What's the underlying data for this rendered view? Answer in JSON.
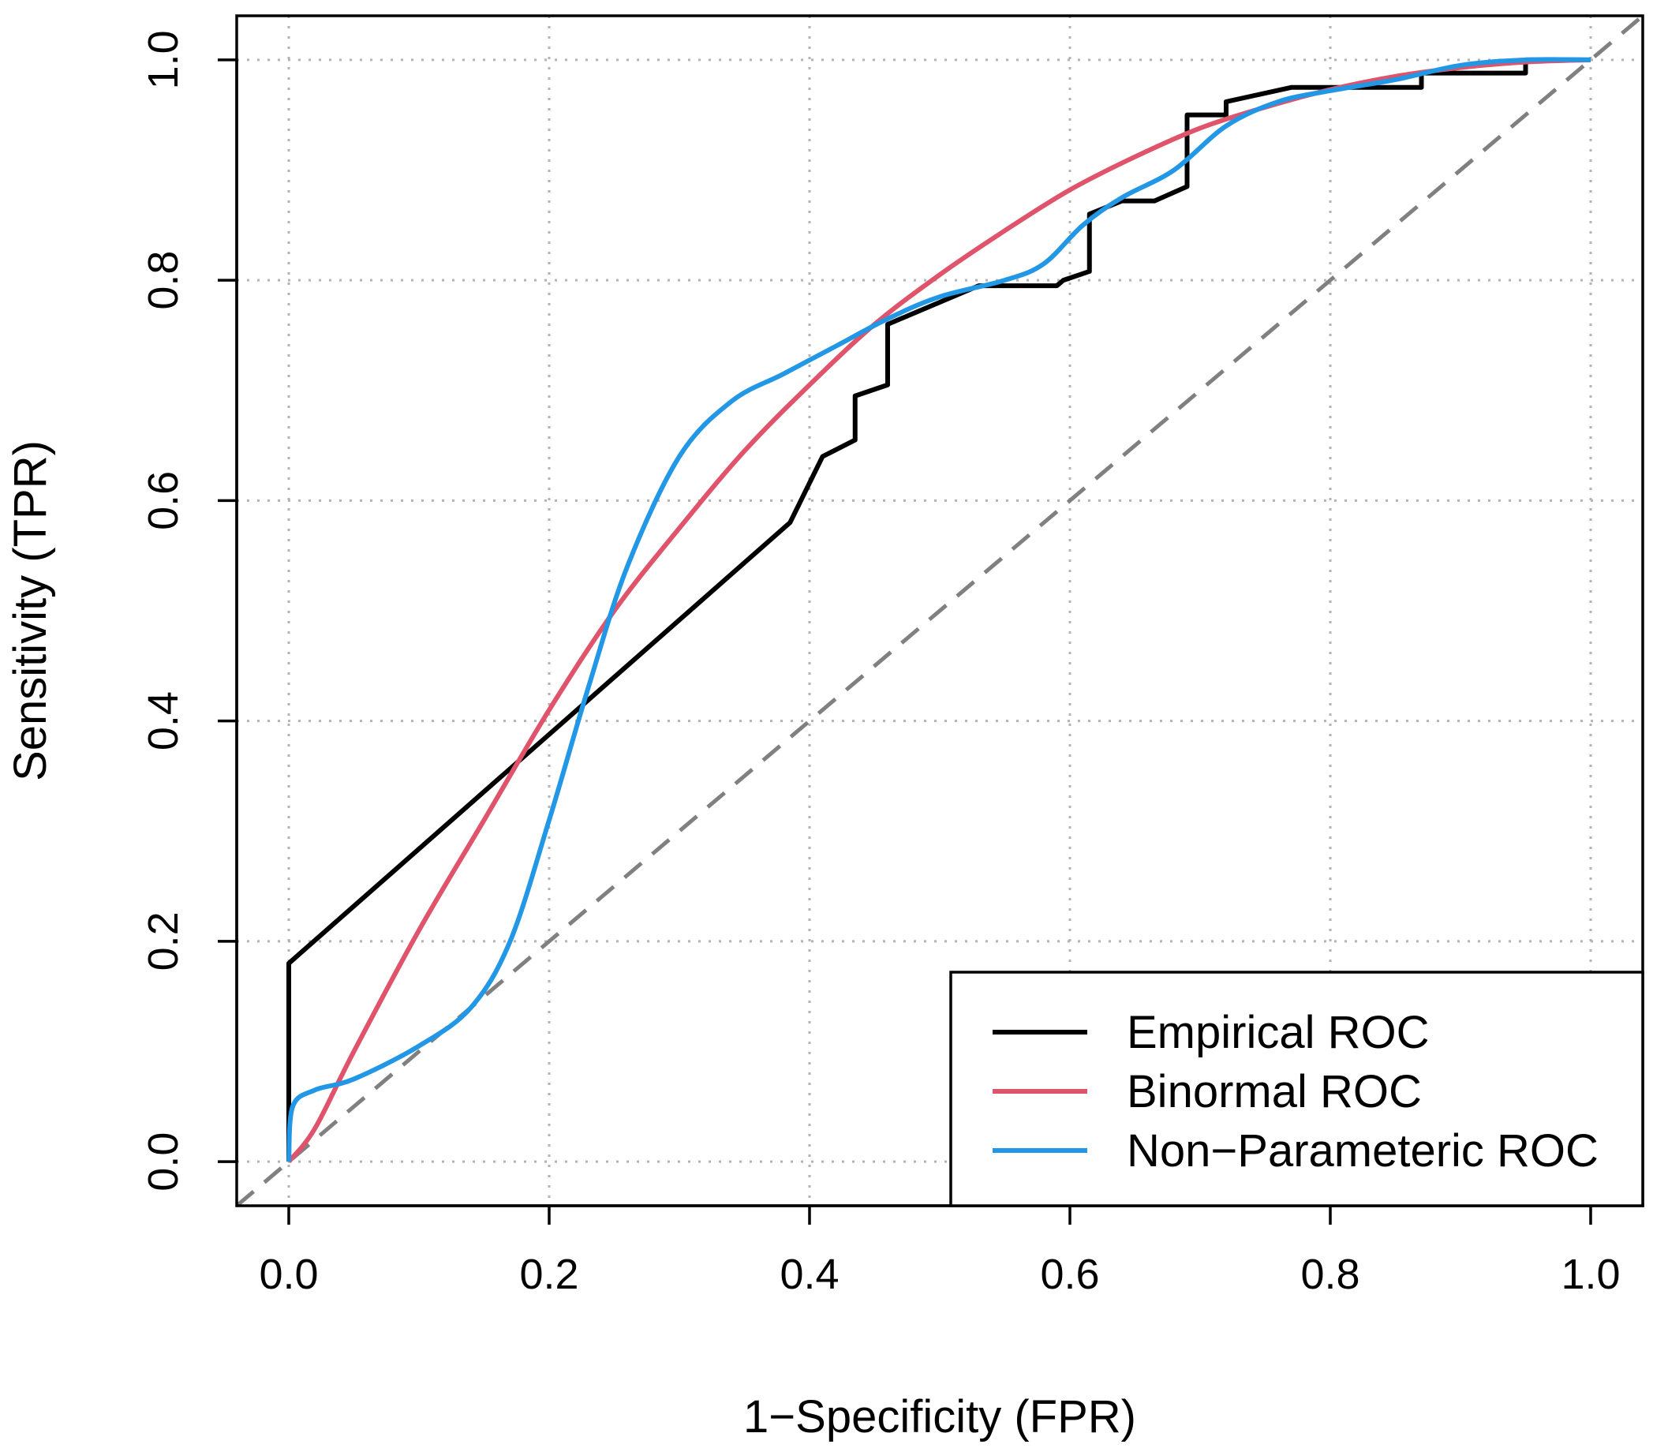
{
  "chart_data": {
    "type": "line",
    "title": "",
    "xlabel": "1−Specificity (FPR)",
    "ylabel": "Sensitivity (TPR)",
    "xlim": [
      -0.04,
      1.04
    ],
    "ylim": [
      -0.04,
      1.04
    ],
    "xticks": [
      "0.0",
      "0.2",
      "0.4",
      "0.6",
      "0.8",
      "1.0"
    ],
    "yticks": [
      "0.0",
      "0.2",
      "0.4",
      "0.6",
      "0.8",
      "1.0"
    ],
    "grid": true,
    "legend_position": "bottom-right",
    "reference_line": {
      "x": [
        0,
        1
      ],
      "y": [
        0,
        1
      ],
      "style": "dashed",
      "color": "#808080"
    },
    "series": [
      {
        "name": "Empirical ROC",
        "color": "#000000",
        "x": [
          0,
          0,
          0.385,
          0.41,
          0.435,
          0.435,
          0.46,
          0.46,
          0.53,
          0.59,
          0.595,
          0.615,
          0.615,
          0.64,
          0.665,
          0.69,
          0.69,
          0.72,
          0.72,
          0.77,
          0.87,
          0.87,
          0.95,
          0.95,
          1.0
        ],
        "y": [
          0,
          0.18,
          0.58,
          0.64,
          0.655,
          0.695,
          0.705,
          0.76,
          0.795,
          0.795,
          0.8,
          0.808,
          0.86,
          0.872,
          0.872,
          0.885,
          0.95,
          0.95,
          0.962,
          0.975,
          0.975,
          0.988,
          0.988,
          1.0,
          1.0
        ]
      },
      {
        "name": "Binormal ROC",
        "color": "#df536b",
        "x": [
          0,
          0.02,
          0.05,
          0.1,
          0.15,
          0.2,
          0.25,
          0.3,
          0.35,
          0.4,
          0.45,
          0.5,
          0.55,
          0.6,
          0.65,
          0.7,
          0.75,
          0.8,
          0.85,
          0.9,
          0.95,
          1.0
        ],
        "y": [
          0,
          0.03,
          0.1,
          0.21,
          0.31,
          0.41,
          0.5,
          0.575,
          0.645,
          0.705,
          0.76,
          0.805,
          0.845,
          0.882,
          0.912,
          0.938,
          0.957,
          0.973,
          0.985,
          0.993,
          0.998,
          1.0
        ]
      },
      {
        "name": "Non−Parameteric ROC",
        "color": "#2297e6",
        "x": [
          0,
          0.003,
          0.02,
          0.05,
          0.1,
          0.14,
          0.17,
          0.2,
          0.23,
          0.26,
          0.3,
          0.34,
          0.38,
          0.42,
          0.46,
          0.5,
          0.55,
          0.58,
          0.61,
          0.64,
          0.68,
          0.72,
          0.76,
          0.8,
          0.85,
          0.9,
          0.95,
          1.0
        ],
        "y": [
          0,
          0.05,
          0.065,
          0.075,
          0.105,
          0.14,
          0.2,
          0.31,
          0.43,
          0.54,
          0.64,
          0.69,
          0.715,
          0.74,
          0.765,
          0.785,
          0.8,
          0.815,
          0.85,
          0.875,
          0.9,
          0.94,
          0.962,
          0.972,
          0.982,
          0.995,
          1.0,
          1.0
        ]
      }
    ]
  }
}
